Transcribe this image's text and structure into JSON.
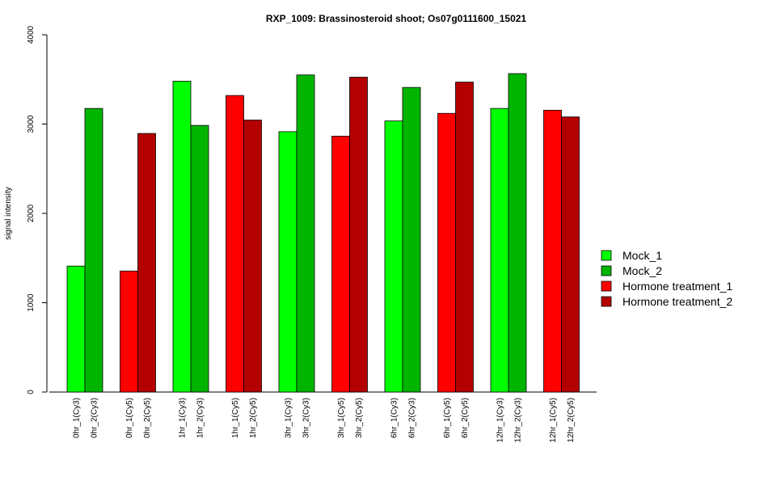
{
  "chart_data": {
    "type": "bar",
    "title": "RXP_1009: Brassinosteroid shoot; Os07g0111600_15021",
    "xlabel": "",
    "ylabel": "signal intensity",
    "ylim": [
      0,
      4000
    ],
    "yticks": [
      0,
      1000,
      2000,
      3000,
      4000
    ],
    "grid": false,
    "legend_position": "right",
    "legend": [
      {
        "name": "Mock_1",
        "color": "#00ff00"
      },
      {
        "name": "Mock_2",
        "color": "#00b400"
      },
      {
        "name": "Hormone treatment_1",
        "color": "#ff0000"
      },
      {
        "name": "Hormone treatment_2",
        "color": "#b40000"
      }
    ],
    "categories": [
      "0hr_1(Cy3)",
      "0hr_2(Cy3)",
      "0hr_1(Cy5)",
      "0hr_2(Cy5)",
      "1hr_1(Cy3)",
      "1hr_2(Cy3)",
      "1hr_1(Cy5)",
      "1hr_2(Cy5)",
      "3hr_1(Cy3)",
      "3hr_2(Cy3)",
      "3hr_1(Cy5)",
      "3hr_2(Cy5)",
      "6hr_1(Cy3)",
      "6hr_2(Cy3)",
      "6hr_1(Cy5)",
      "6hr_2(Cy5)",
      "12hr_1(Cy3)",
      "12hr_2(Cy3)",
      "12hr_1(Cy5)",
      "12hr_2(Cy5)"
    ],
    "values": [
      1410,
      3175,
      1355,
      2895,
      3480,
      2985,
      3320,
      3045,
      2915,
      3550,
      2865,
      3525,
      3035,
      3410,
      3120,
      3470,
      3175,
      3565,
      3155,
      3080
    ],
    "bar_series": [
      0,
      1,
      2,
      3,
      0,
      1,
      2,
      3,
      0,
      1,
      2,
      3,
      0,
      1,
      2,
      3,
      0,
      1,
      2,
      3
    ]
  }
}
